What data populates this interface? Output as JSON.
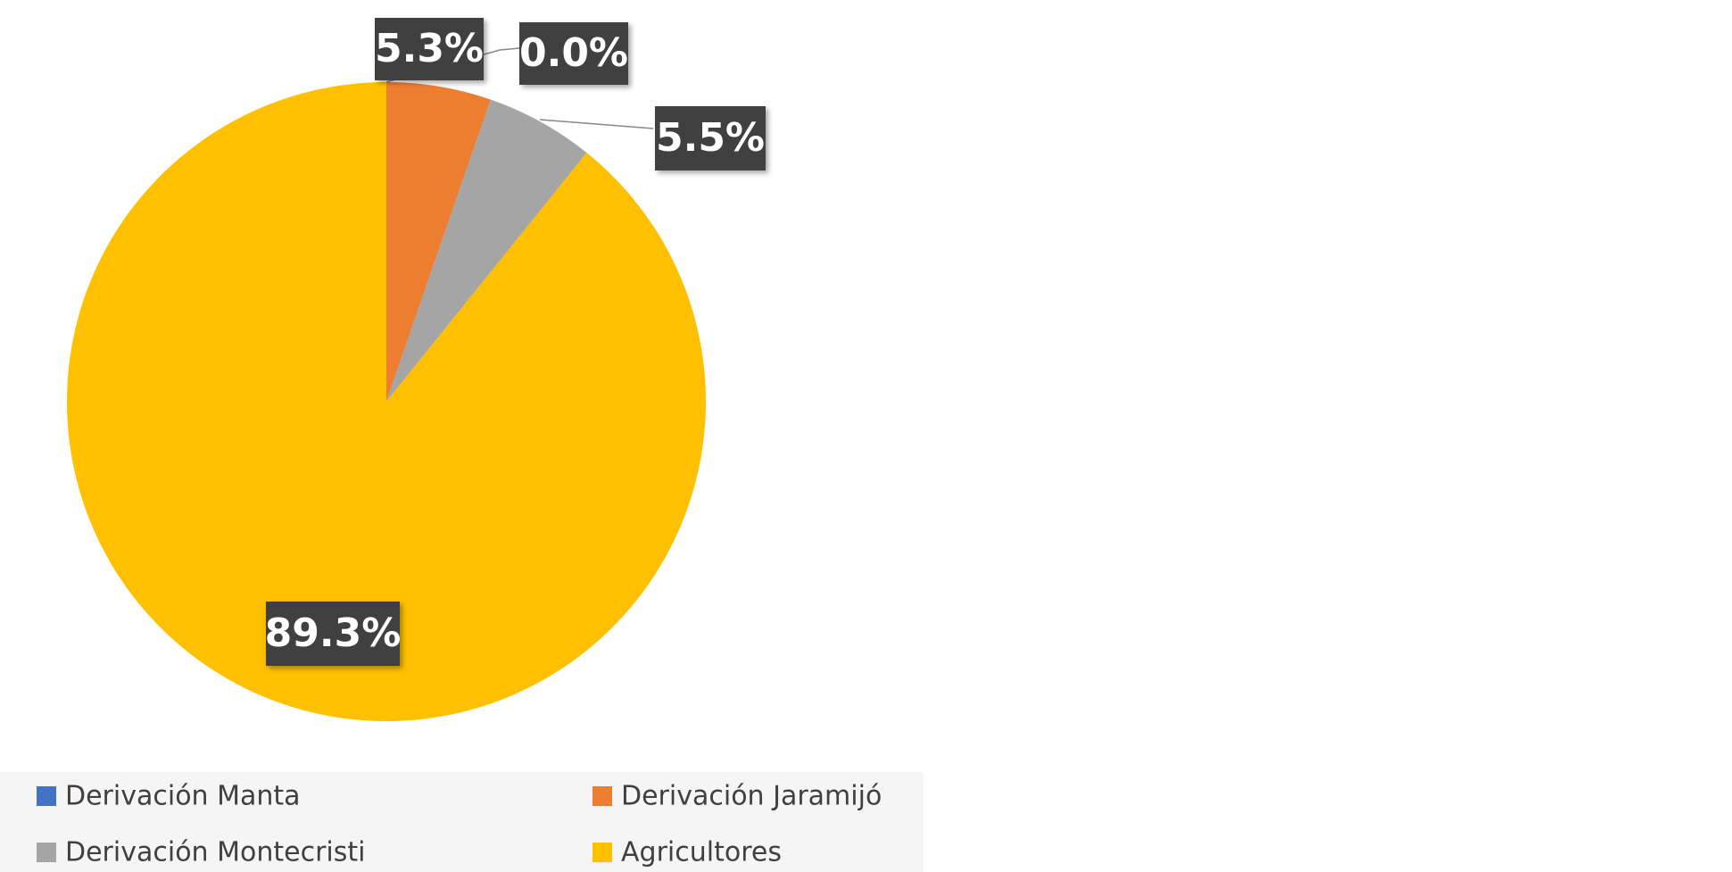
{
  "chart_data": {
    "type": "pie",
    "categories": [
      "Derivación Manta",
      "Derivación Jaramijó",
      "Derivación Montecristi",
      "Agricultores"
    ],
    "values": [
      0.0,
      5.3,
      5.5,
      89.3
    ],
    "value_labels": [
      "0.0%",
      "5.3%",
      "5.5%",
      "89.3%"
    ],
    "colors": [
      "#4472c4",
      "#ed7d31",
      "#a5a5a5",
      "#ffc000"
    ],
    "legend": "bottom"
  }
}
